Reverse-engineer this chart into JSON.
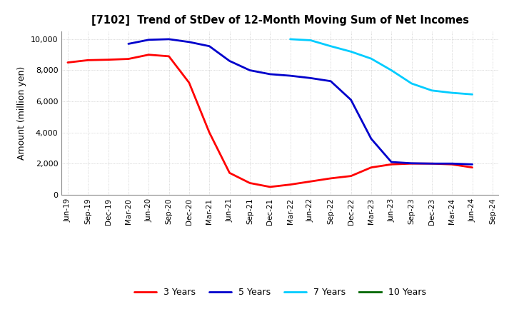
{
  "title": "[7102]  Trend of StDev of 12-Month Moving Sum of Net Incomes",
  "ylabel": "Amount (million yen)",
  "background_color": "#ffffff",
  "grid_color": "#aaaaaa",
  "ylim": [
    0,
    10500
  ],
  "yticks": [
    0,
    2000,
    4000,
    6000,
    8000,
    10000
  ],
  "x_labels": [
    "Jun-19",
    "Sep-19",
    "Dec-19",
    "Mar-20",
    "Jun-20",
    "Sep-20",
    "Dec-20",
    "Mar-21",
    "Jun-21",
    "Sep-21",
    "Dec-21",
    "Mar-22",
    "Jun-22",
    "Sep-22",
    "Dec-22",
    "Mar-23",
    "Jun-23",
    "Sep-23",
    "Dec-23",
    "Mar-24",
    "Jun-24",
    "Sep-24"
  ],
  "series": {
    "3 Years": {
      "color": "#ff0000",
      "values": [
        8500,
        8650,
        8680,
        8730,
        9000,
        8900,
        7200,
        4000,
        1400,
        750,
        500,
        650,
        850,
        1050,
        1200,
        1750,
        1950,
        2000,
        2000,
        1950,
        1750,
        null
      ]
    },
    "5 Years": {
      "color": "#0000cc",
      "values": [
        null,
        null,
        null,
        9700,
        9960,
        10000,
        9820,
        9550,
        8600,
        8000,
        7750,
        7650,
        7500,
        7300,
        6100,
        3600,
        2100,
        2020,
        2000,
        2000,
        1950,
        null
      ]
    },
    "7 Years": {
      "color": "#00ccff",
      "values": [
        null,
        null,
        null,
        null,
        null,
        null,
        null,
        null,
        null,
        null,
        null,
        10000,
        9930,
        9550,
        9200,
        8750,
        8000,
        7150,
        6700,
        6550,
        6450,
        null
      ]
    },
    "10 Years": {
      "color": "#006600",
      "values": [
        null,
        null,
        null,
        null,
        null,
        null,
        null,
        null,
        null,
        null,
        null,
        null,
        null,
        null,
        null,
        null,
        null,
        null,
        null,
        null,
        null,
        null
      ]
    }
  },
  "legend_order": [
    "3 Years",
    "5 Years",
    "7 Years",
    "10 Years"
  ]
}
